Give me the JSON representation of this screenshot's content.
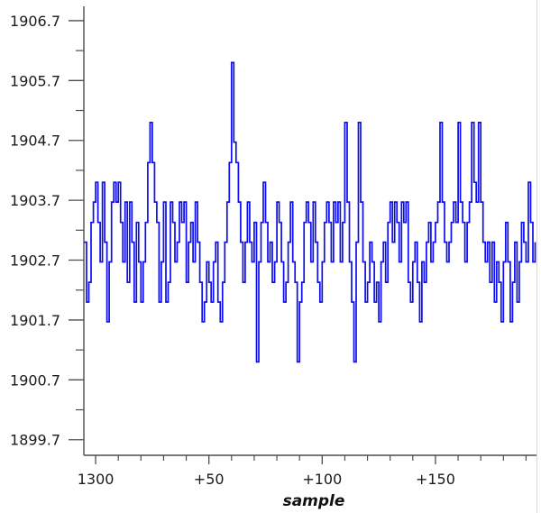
{
  "chart_data": {
    "type": "line",
    "line_style": "step-post",
    "title": "",
    "xlabel": "sample",
    "ylabel": "",
    "legend": "none",
    "grid": "off",
    "series_color": "#0d0dee",
    "axis_color": "#4d4d4d",
    "tick_label_color": "#1a1a1a",
    "x_start": 1295,
    "xlim": [
      1294.8,
      1495.0
    ],
    "ylim": [
      1899.44,
      1906.94
    ],
    "x_major_ticks": [
      {
        "value": 1300,
        "label": "1300"
      },
      {
        "value": 1350,
        "label": "+50"
      },
      {
        "value": 1400,
        "label": "+100"
      },
      {
        "value": 1450,
        "label": "+150"
      }
    ],
    "x_minor_tick_step": 10,
    "x_minor_tick_range": [
      1310,
      1490
    ],
    "y_major_ticks": [
      {
        "value": 1899.7,
        "label": "1899.7"
      },
      {
        "value": 1900.7,
        "label": "1900.7"
      },
      {
        "value": 1901.7,
        "label": "1901.7"
      },
      {
        "value": 1902.7,
        "label": "1902.7"
      },
      {
        "value": 1903.7,
        "label": "1903.7"
      },
      {
        "value": 1904.7,
        "label": "1904.7"
      },
      {
        "value": 1905.7,
        "label": "1905.7"
      },
      {
        "value": 1906.7,
        "label": "1906.7"
      }
    ],
    "y_minor_tick_step": 1.0,
    "y_minor_tick_range": [
      1900.2,
      1906.2
    ],
    "values": [
      1903.0,
      1902.0,
      1902.33,
      1903.33,
      1903.67,
      1904.0,
      1903.33,
      1902.67,
      1904.0,
      1903.0,
      1901.67,
      1902.67,
      1903.67,
      1904.0,
      1903.67,
      1904.0,
      1903.33,
      1902.67,
      1903.67,
      1902.33,
      1903.67,
      1903.0,
      1902.0,
      1903.33,
      1902.67,
      1902.0,
      1902.67,
      1903.33,
      1904.33,
      1905.0,
      1904.33,
      1903.67,
      1903.33,
      1902.0,
      1902.67,
      1903.67,
      1902.0,
      1902.33,
      1903.67,
      1903.33,
      1902.67,
      1903.0,
      1903.67,
      1903.33,
      1903.67,
      1902.33,
      1903.0,
      1903.33,
      1902.67,
      1903.67,
      1903.0,
      1902.33,
      1901.67,
      1902.0,
      1902.67,
      1902.33,
      1902.0,
      1902.67,
      1903.0,
      1902.0,
      1901.67,
      1902.33,
      1903.0,
      1903.67,
      1904.33,
      1906.0,
      1904.67,
      1904.33,
      1903.67,
      1903.0,
      1902.33,
      1903.0,
      1903.67,
      1903.0,
      1902.67,
      1903.33,
      1901.0,
      1902.67,
      1903.33,
      1904.0,
      1903.33,
      1902.67,
      1903.0,
      1902.33,
      1902.67,
      1903.67,
      1903.33,
      1902.67,
      1902.0,
      1902.33,
      1903.0,
      1903.67,
      1902.67,
      1902.33,
      1901.0,
      1902.0,
      1902.33,
      1903.33,
      1903.67,
      1903.33,
      1902.67,
      1903.67,
      1903.0,
      1902.33,
      1902.0,
      1902.67,
      1903.33,
      1903.67,
      1903.33,
      1902.67,
      1903.67,
      1903.33,
      1903.67,
      1902.67,
      1903.33,
      1905.0,
      1903.67,
      1902.67,
      1902.0,
      1901.0,
      1903.0,
      1905.0,
      1903.67,
      1902.67,
      1902.0,
      1902.33,
      1903.0,
      1902.67,
      1902.0,
      1902.33,
      1901.67,
      1902.67,
      1903.0,
      1902.33,
      1903.33,
      1903.67,
      1903.0,
      1903.67,
      1903.33,
      1902.67,
      1903.67,
      1903.33,
      1903.67,
      1902.33,
      1902.0,
      1902.67,
      1903.0,
      1902.33,
      1901.67,
      1902.67,
      1902.33,
      1903.0,
      1903.33,
      1902.67,
      1903.0,
      1903.33,
      1903.67,
      1905.0,
      1903.67,
      1903.0,
      1902.67,
      1903.0,
      1903.33,
      1903.67,
      1903.33,
      1905.0,
      1903.67,
      1903.33,
      1902.67,
      1903.33,
      1903.67,
      1905.0,
      1904.0,
      1903.67,
      1905.0,
      1903.67,
      1903.0,
      1902.67,
      1903.0,
      1902.33,
      1903.0,
      1902.0,
      1902.67,
      1902.33,
      1901.67,
      1902.67,
      1903.33,
      1902.67,
      1901.67,
      1902.33,
      1903.0,
      1902.0,
      1902.67,
      1903.33,
      1903.0,
      1902.67,
      1904.0,
      1903.33,
      1902.67,
      1903.0
    ]
  }
}
